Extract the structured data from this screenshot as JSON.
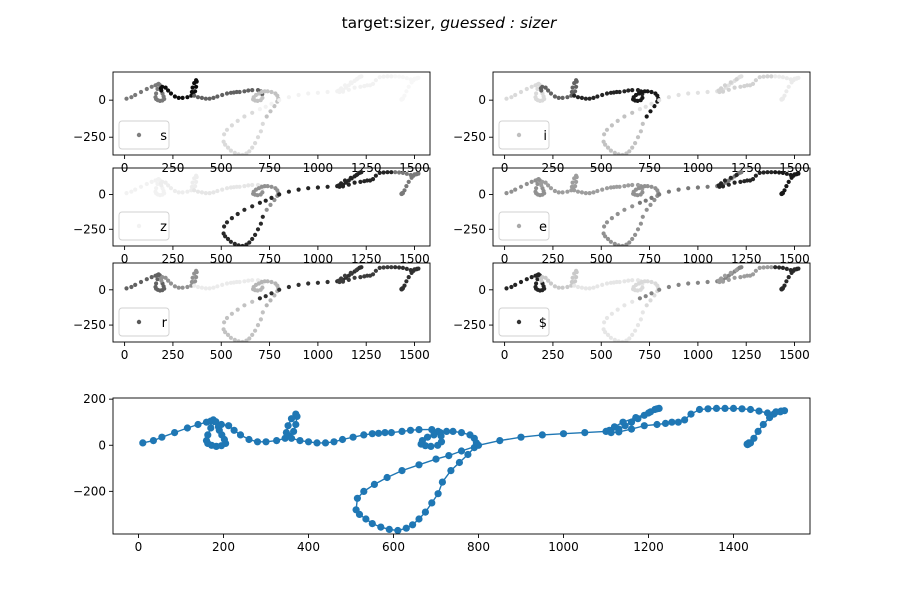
{
  "figure": {
    "title_prefix": "target:sizer, ",
    "title_suffix": "guessed : sizer"
  },
  "chart_data": [
    {
      "type": "scatter",
      "panel": "s",
      "legend": "s",
      "legend_color": "#7f7f7f",
      "legend_position": "lower left",
      "xlim": [
        -60,
        1580
      ],
      "ylim": [
        -370,
        190
      ],
      "xticks": [
        "0",
        "250",
        "500",
        "750",
        "1000",
        "1250",
        "1500"
      ],
      "yticks": [
        "-250",
        "0"
      ],
      "ink": [
        0.45,
        0.0,
        0.35,
        0.75,
        0.85,
        0.95,
        0.95,
        0.97
      ]
    },
    {
      "type": "scatter",
      "panel": "i",
      "legend": "i",
      "legend_color": "#bfbfbf",
      "legend_position": "lower left",
      "xlim": [
        -60,
        1580
      ],
      "ylim": [
        -370,
        190
      ],
      "xticks": [
        "0",
        "250",
        "500",
        "750",
        "1000",
        "1250",
        "1500"
      ],
      "yticks": [
        "-250",
        "0"
      ],
      "ink": [
        0.85,
        0.35,
        0.1,
        0.05,
        0.75,
        0.88,
        0.82,
        0.92
      ]
    },
    {
      "type": "scatter",
      "panel": "z",
      "legend": "z",
      "legend_color": "#f2f2f2",
      "legend_position": "lower left",
      "xlim": [
        -60,
        1580
      ],
      "ylim": [
        -370,
        190
      ],
      "xticks": [
        "0",
        "250",
        "500",
        "750",
        "1000",
        "1250",
        "1500"
      ],
      "yticks": [
        "-250",
        "0"
      ],
      "ink": [
        0.95,
        0.93,
        0.9,
        0.55,
        0.12,
        0.1,
        0.1,
        0.45
      ]
    },
    {
      "type": "scatter",
      "panel": "e",
      "legend": "e",
      "legend_color": "#a9a9a9",
      "legend_position": "lower left",
      "xlim": [
        -60,
        1580
      ],
      "ylim": [
        -370,
        190
      ],
      "xticks": [
        "0",
        "250",
        "500",
        "750",
        "1000",
        "1250",
        "1500"
      ],
      "yticks": [
        "-250",
        "0"
      ],
      "ink": [
        0.55,
        0.6,
        0.6,
        0.55,
        0.55,
        0.45,
        0.1,
        0.05
      ]
    },
    {
      "type": "scatter",
      "panel": "r",
      "legend": "r",
      "legend_color": "#595959",
      "legend_position": "lower left",
      "xlim": [
        -60,
        1580
      ],
      "ylim": [
        -370,
        190
      ],
      "xticks": [
        "0",
        "250",
        "500",
        "750",
        "1000",
        "1250",
        "1500"
      ],
      "yticks": [
        "-250",
        "0"
      ],
      "ink": [
        0.35,
        0.55,
        0.92,
        0.7,
        0.75,
        0.15,
        0.2,
        0.15
      ]
    },
    {
      "type": "scatter",
      "panel": "$",
      "legend": "$",
      "legend_color": "#333333",
      "legend_position": "lower left",
      "xlim": [
        -60,
        1580
      ],
      "ylim": [
        -370,
        190
      ],
      "xticks": [
        "0",
        "250",
        "500",
        "750",
        "1000",
        "1250",
        "1500"
      ],
      "yticks": [
        "-250",
        "0"
      ],
      "ink": [
        0.1,
        0.78,
        0.9,
        0.85,
        0.9,
        0.5,
        0.6,
        0.12
      ]
    },
    {
      "type": "line",
      "panel": "trajectory",
      "color": "#1f77b4",
      "xlim": [
        -60,
        1580
      ],
      "ylim": [
        -385,
        205
      ],
      "xticks": [
        "0",
        "200",
        "400",
        "600",
        "800",
        "1000",
        "1200",
        "1400"
      ],
      "yticks": [
        "-200",
        "0",
        "200"
      ],
      "stroke_x": [
        10,
        35,
        55,
        85,
        115,
        140,
        160,
        170,
        176,
        182,
        170,
        163,
        160,
        163,
        172,
        183,
        195,
        205,
        202,
        196,
        190,
        188,
        195,
        212,
        225,
        240,
        260,
        280,
        300,
        325,
        345,
        355,
        365,
        370,
        373,
        370,
        360,
        352,
        348,
        360,
        380,
        400,
        420,
        440,
        460,
        480,
        505,
        530,
        550,
        565,
        580,
        595,
        620,
        640,
        660,
        690,
        705,
        712,
        713,
        704,
        688,
        675,
        665,
        668,
        680,
        695,
        710,
        725,
        740,
        760,
        780,
        790,
        795,
        790,
        775,
        755,
        735,
        715,
        705,
        690,
        675,
        660,
        645,
        630,
        610,
        590,
        570,
        550,
        535,
        520,
        512,
        515,
        530,
        555,
        585,
        620,
        660,
        700,
        730,
        760,
        800,
        850,
        900,
        950,
        1000,
        1050,
        1100,
        1130,
        1145,
        1160,
        1175,
        1190,
        1205,
        1215,
        1225,
        1220,
        1200,
        1170,
        1140,
        1120,
        1108,
        1112,
        1130,
        1160,
        1190,
        1220,
        1240,
        1255,
        1270,
        1285,
        1300,
        1320,
        1340,
        1360,
        1380,
        1400,
        1420,
        1440,
        1460,
        1480,
        1495,
        1510,
        1520,
        1512,
        1500,
        1485,
        1470,
        1458,
        1448,
        1440,
        1435,
        1433,
        1432,
        1436
      ],
      "stroke_y": [
        10,
        20,
        35,
        55,
        75,
        90,
        100,
        105,
        110,
        102,
        75,
        45,
        20,
        8,
        0,
        -5,
        -2,
        8,
        25,
        45,
        65,
        80,
        90,
        85,
        65,
        45,
        25,
        15,
        15,
        20,
        30,
        40,
        60,
        90,
        125,
        135,
        115,
        85,
        55,
        30,
        20,
        15,
        10,
        10,
        15,
        25,
        35,
        45,
        50,
        52,
        55,
        55,
        60,
        65,
        68,
        68,
        60,
        40,
        15,
        0,
        -5,
        -2,
        5,
        20,
        35,
        45,
        55,
        60,
        60,
        55,
        45,
        30,
        10,
        -10,
        -40,
        -75,
        -110,
        -160,
        -210,
        -250,
        -290,
        -320,
        -345,
        -360,
        -370,
        -365,
        -355,
        -340,
        -320,
        -300,
        -280,
        -230,
        -200,
        -170,
        -140,
        -110,
        -85,
        -60,
        -45,
        -25,
        0,
        20,
        35,
        45,
        50,
        55,
        60,
        70,
        85,
        100,
        115,
        130,
        145,
        155,
        160,
        158,
        140,
        120,
        100,
        80,
        65,
        55,
        58,
        70,
        85,
        90,
        95,
        100,
        100,
        110,
        135,
        155,
        158,
        160,
        160,
        160,
        158,
        155,
        148,
        140,
        135,
        145,
        150,
        148,
        145,
        120,
        90,
        60,
        30,
        10,
        5,
        3,
        5,
        10
      ]
    }
  ]
}
